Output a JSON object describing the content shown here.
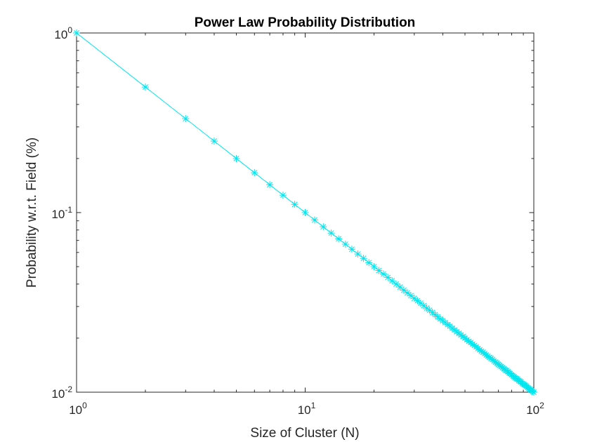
{
  "chart_data": {
    "type": "line",
    "title": "Power Law Probability Distribution",
    "xlabel": "Size of Cluster (N)",
    "ylabel": "Probability w.r.t. Field (%)",
    "xscale": "log",
    "yscale": "log",
    "xlim": [
      1,
      100
    ],
    "ylim": [
      0.01,
      1
    ],
    "grid": false,
    "legend": "none",
    "x_ticks": [
      {
        "value": 1,
        "base": "10",
        "exp": "0"
      },
      {
        "value": 10,
        "base": "10",
        "exp": "1"
      },
      {
        "value": 100,
        "base": "10",
        "exp": "2"
      }
    ],
    "y_ticks": [
      {
        "value": 0.01,
        "base": "10",
        "exp": "-2"
      },
      {
        "value": 0.1,
        "base": "10",
        "exp": "-1"
      },
      {
        "value": 1,
        "base": "10",
        "exp": "0"
      }
    ],
    "series": [
      {
        "marker": "asterisk",
        "color": "#00E5EE",
        "x": [
          1,
          2,
          3,
          4,
          5,
          6,
          7,
          8,
          9,
          10,
          11,
          12,
          13,
          14,
          15,
          16,
          17,
          18,
          19,
          20,
          21,
          22,
          23,
          24,
          25,
          26,
          27,
          28,
          29,
          30,
          31,
          32,
          33,
          34,
          35,
          36,
          37,
          38,
          39,
          40,
          41,
          42,
          43,
          44,
          45,
          46,
          47,
          48,
          49,
          50,
          51,
          52,
          53,
          54,
          55,
          56,
          57,
          58,
          59,
          60,
          61,
          62,
          63,
          64,
          65,
          66,
          67,
          68,
          69,
          70,
          71,
          72,
          73,
          74,
          75,
          76,
          77,
          78,
          79,
          80,
          81,
          82,
          83,
          84,
          85,
          86,
          87,
          88,
          89,
          90,
          91,
          92,
          93,
          94,
          95,
          96,
          97,
          98,
          99,
          100
        ],
        "y": [
          1,
          0.5,
          0.3333,
          0.25,
          0.2,
          0.1667,
          0.1429,
          0.125,
          0.1111,
          0.1,
          0.0909,
          0.0833,
          0.0769,
          0.0714,
          0.0667,
          0.0625,
          0.0588,
          0.0556,
          0.0526,
          0.05,
          0.0476,
          0.0455,
          0.0435,
          0.0417,
          0.04,
          0.0385,
          0.037,
          0.0357,
          0.0345,
          0.0333,
          0.0323,
          0.0313,
          0.0303,
          0.0294,
          0.0286,
          0.0278,
          0.027,
          0.0263,
          0.0256,
          0.025,
          0.0244,
          0.0238,
          0.0233,
          0.0227,
          0.0222,
          0.0217,
          0.0213,
          0.0208,
          0.0204,
          0.02,
          0.0196,
          0.0192,
          0.0189,
          0.0185,
          0.0182,
          0.0179,
          0.0175,
          0.0172,
          0.0169,
          0.0167,
          0.0164,
          0.0161,
          0.0159,
          0.0156,
          0.0154,
          0.0152,
          0.0149,
          0.0147,
          0.0145,
          0.0143,
          0.0141,
          0.0139,
          0.0137,
          0.0135,
          0.0133,
          0.0132,
          0.013,
          0.0128,
          0.0127,
          0.0125,
          0.0123,
          0.0122,
          0.012,
          0.0119,
          0.0118,
          0.0116,
          0.0115,
          0.0114,
          0.0112,
          0.0111,
          0.011,
          0.0109,
          0.0108,
          0.0106,
          0.0105,
          0.0104,
          0.0103,
          0.0102,
          0.0101,
          0.01
        ]
      }
    ]
  }
}
